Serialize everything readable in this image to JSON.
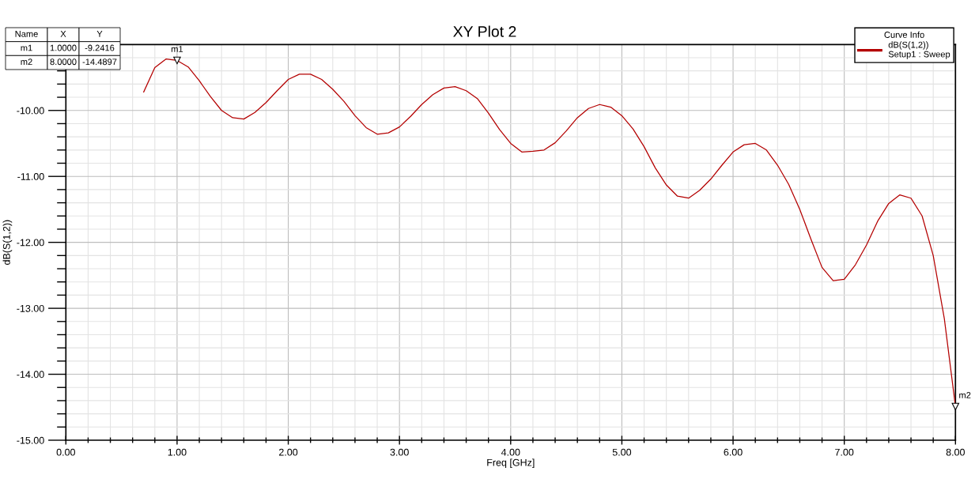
{
  "chart_data": {
    "type": "line",
    "title": "XY Plot 2",
    "xlabel": "Freq [GHz]",
    "ylabel": "dB(S(1,2))",
    "legend_title": "Curve Info",
    "x": [
      0.7,
      0.8,
      0.9,
      1.0,
      1.1,
      1.2,
      1.3,
      1.4,
      1.5,
      1.6,
      1.7,
      1.8,
      1.9,
      2.0,
      2.1,
      2.2,
      2.3,
      2.4,
      2.5,
      2.6,
      2.7,
      2.8,
      2.9,
      3.0,
      3.1,
      3.2,
      3.3,
      3.4,
      3.5,
      3.6,
      3.7,
      3.8,
      3.9,
      4.0,
      4.1,
      4.2,
      4.3,
      4.4,
      4.5,
      4.6,
      4.7,
      4.8,
      4.9,
      5.0,
      5.1,
      5.2,
      5.3,
      5.4,
      5.5,
      5.6,
      5.7,
      5.8,
      5.9,
      6.0,
      6.1,
      6.2,
      6.3,
      6.4,
      6.5,
      6.6,
      6.7,
      6.8,
      6.9,
      7.0,
      7.1,
      7.2,
      7.3,
      7.4,
      7.5,
      7.6,
      7.7,
      7.8,
      7.9,
      8.0
    ],
    "series": [
      {
        "name": "dB(S(1,2))\nSetup1 : Sweep",
        "color": "#b40000",
        "values": [
          -9.72,
          -9.35,
          -9.22,
          -9.2416,
          -9.34,
          -9.55,
          -9.79,
          -10.0,
          -10.11,
          -10.13,
          -10.03,
          -9.88,
          -9.7,
          -9.53,
          -9.45,
          -9.45,
          -9.53,
          -9.68,
          -9.86,
          -10.08,
          -10.26,
          -10.36,
          -10.34,
          -10.25,
          -10.09,
          -9.91,
          -9.76,
          -9.66,
          -9.64,
          -9.7,
          -9.82,
          -10.04,
          -10.29,
          -10.5,
          -10.63,
          -10.62,
          -10.6,
          -10.49,
          -10.31,
          -10.11,
          -9.97,
          -9.91,
          -9.95,
          -10.08,
          -10.28,
          -10.55,
          -10.87,
          -11.13,
          -11.3,
          -11.33,
          -11.21,
          -11.04,
          -10.83,
          -10.63,
          -10.52,
          -10.5,
          -10.6,
          -10.83,
          -11.12,
          -11.5,
          -11.95,
          -12.38,
          -12.58,
          -12.56,
          -12.34,
          -12.04,
          -11.68,
          -11.41,
          -11.28,
          -11.33,
          -11.6,
          -12.2,
          -13.16,
          -14.4897
        ]
      }
    ],
    "xlim": [
      0,
      8
    ],
    "ylim": [
      -15,
      -9
    ],
    "xticks": [
      {
        "value": 0,
        "label": "0.00"
      },
      {
        "value": 1,
        "label": "1.00"
      },
      {
        "value": 2,
        "label": "2.00"
      },
      {
        "value": 3,
        "label": "3.00"
      },
      {
        "value": 4,
        "label": "4.00"
      },
      {
        "value": 5,
        "label": "5.00"
      },
      {
        "value": 6,
        "label": "6.00"
      },
      {
        "value": 7,
        "label": "7.00"
      },
      {
        "value": 8,
        "label": "8.00"
      }
    ],
    "yticks": [
      {
        "value": -15,
        "label": "-15.00"
      },
      {
        "value": -14,
        "label": "-14.00"
      },
      {
        "value": -13,
        "label": "-13.00"
      },
      {
        "value": -12,
        "label": "-12.00"
      },
      {
        "value": -11,
        "label": "-11.00"
      },
      {
        "value": -10,
        "label": "-10.00"
      }
    ],
    "grid": true,
    "legend": "top right",
    "line_style": "solid",
    "annotations": [
      "Name",
      "X",
      "Y",
      "m1",
      "1.0000",
      "-9.2416",
      "m2",
      "8.0000",
      "-14.4897",
      {
        "text": "m1",
        "x": 1.0,
        "y": -9.2416
      },
      {
        "text": "m2",
        "x": 8.0,
        "y": -14.4897
      }
    ]
  }
}
